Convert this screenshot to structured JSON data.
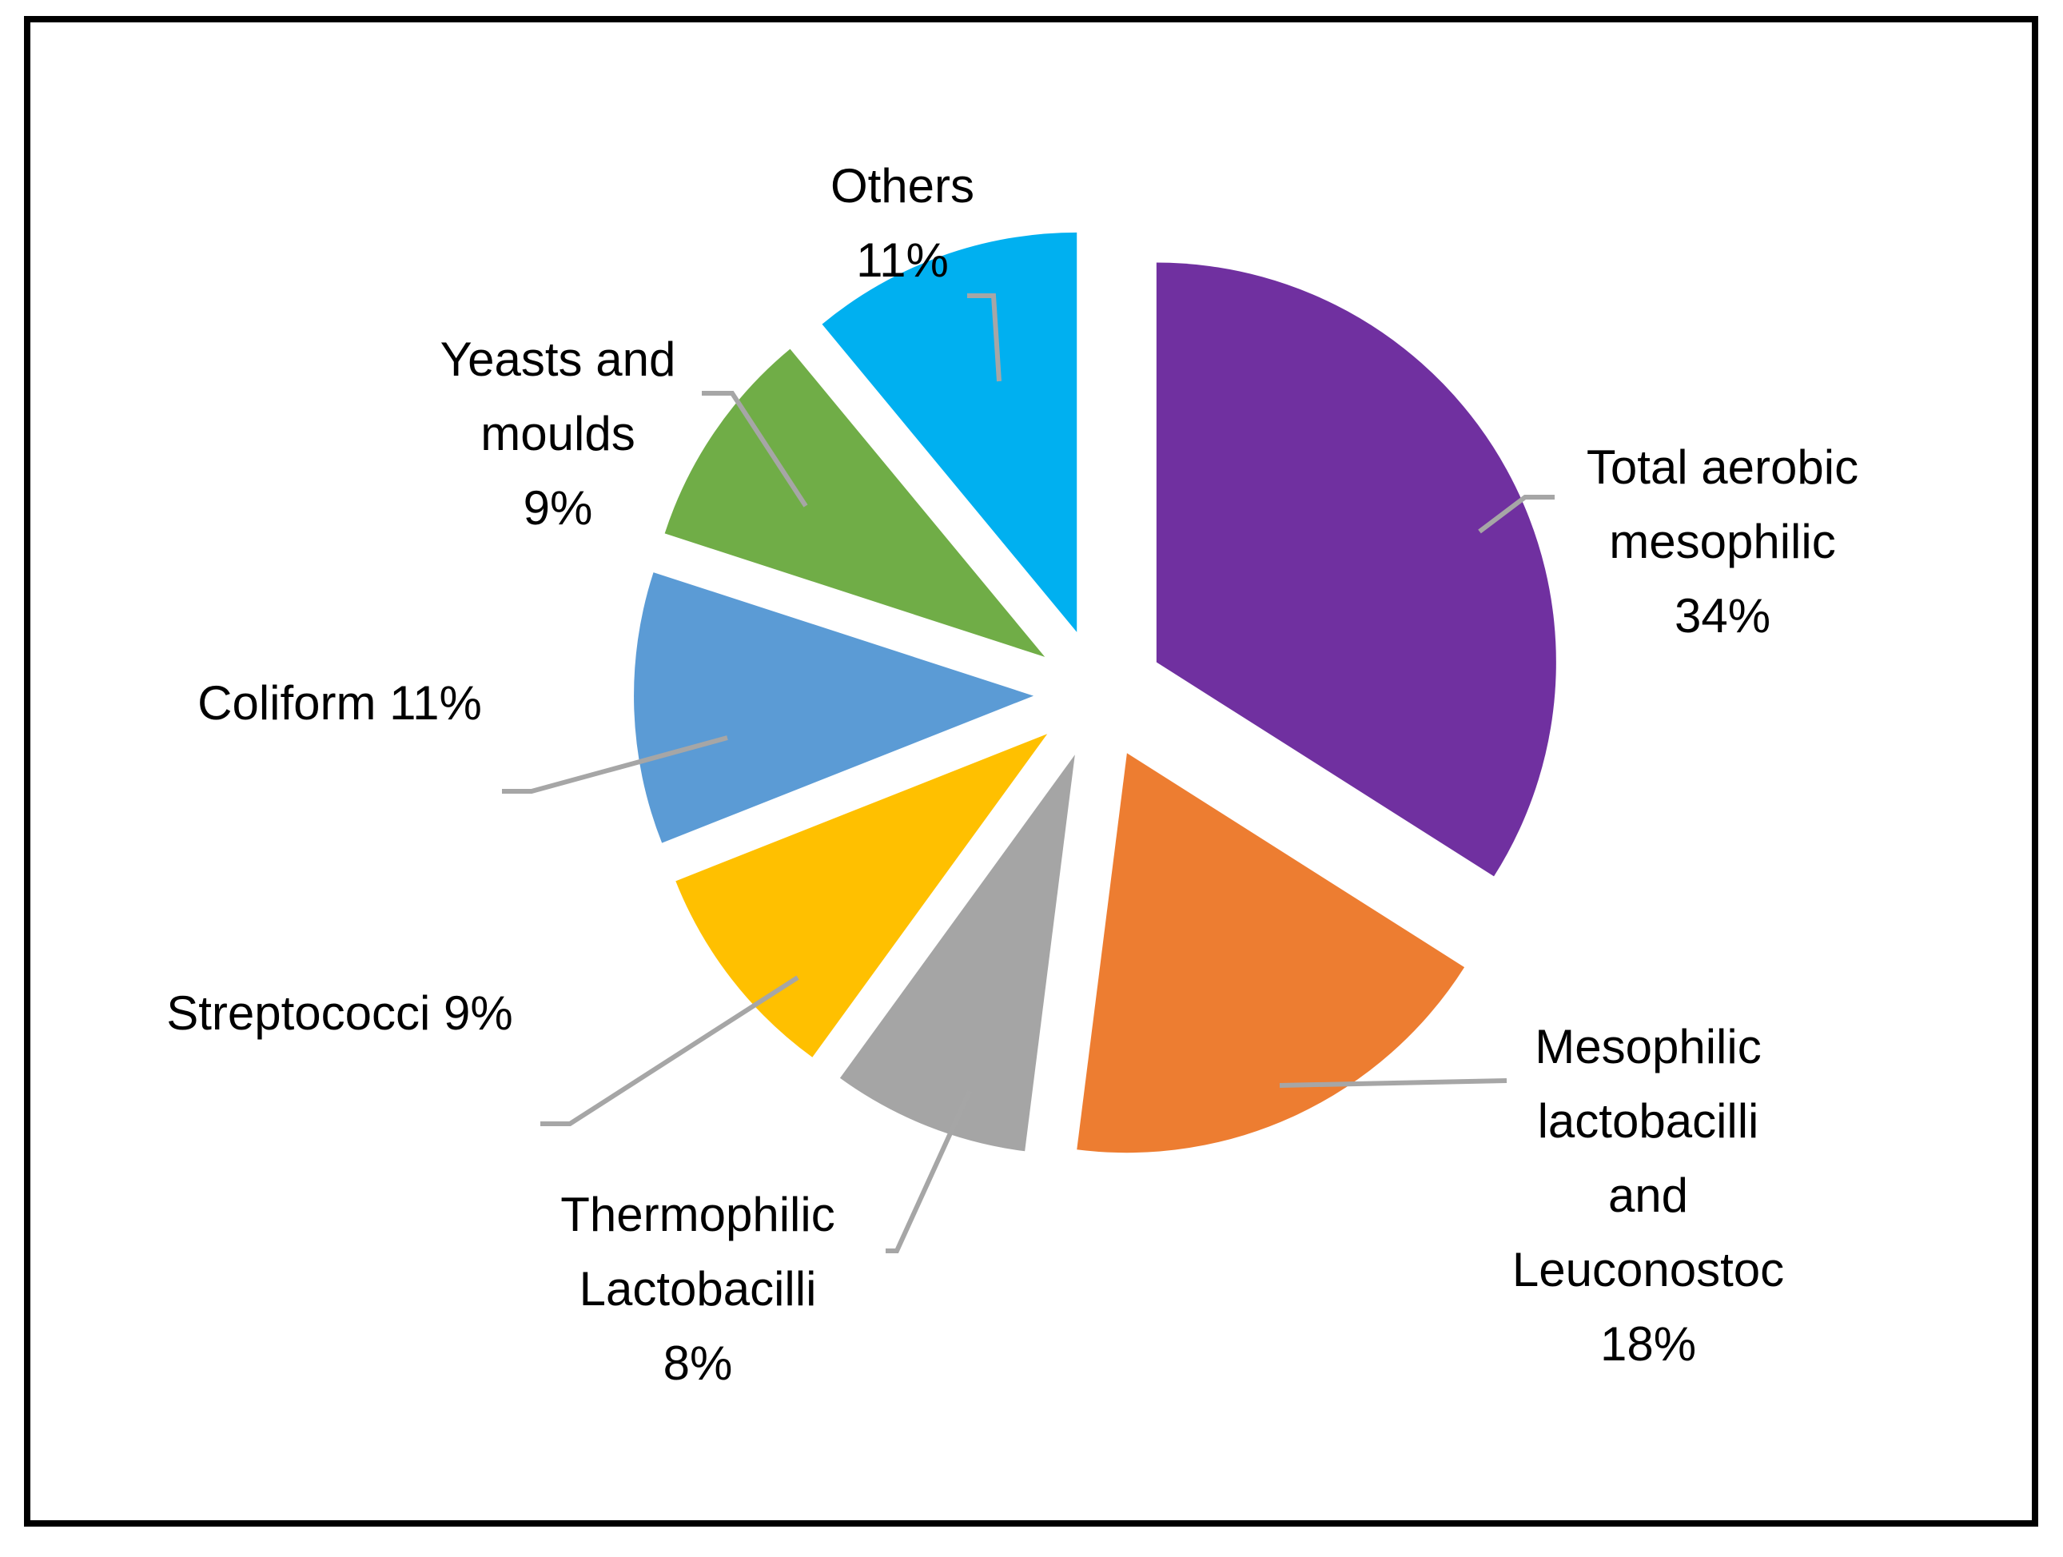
{
  "chart_data": {
    "type": "pie",
    "title": "",
    "exploded": true,
    "slices": [
      {
        "name": "Total aerobic mesophilic",
        "label_lines": [
          "Total aerobic",
          "mesophilic",
          "34%"
        ],
        "value": 34,
        "percent_label": "34%",
        "color": "#7030A0"
      },
      {
        "name": "Mesophilic lactobacilli and Leuconostoc",
        "label_lines": [
          "Mesophilic",
          "lactobacilli",
          "and",
          "Leuconostoc",
          "18%"
        ],
        "value": 18,
        "percent_label": "18%",
        "color": "#ED7D31"
      },
      {
        "name": "Thermophilic Lactobacilli",
        "label_lines": [
          "Thermophilic",
          "Lactobacilli",
          "8%"
        ],
        "value": 8,
        "percent_label": "8%",
        "color": "#A5A5A5"
      },
      {
        "name": "Streptococci",
        "label_lines": [
          "Streptococci 9%"
        ],
        "value": 9,
        "percent_label": "9%",
        "color": "#FFC000"
      },
      {
        "name": "Coliform",
        "label_lines": [
          "Coliform 11%"
        ],
        "value": 11,
        "percent_label": "11%",
        "color": "#5B9BD5"
      },
      {
        "name": "Yeasts and moulds",
        "label_lines": [
          "Yeasts and",
          "moulds",
          "9%"
        ],
        "value": 9,
        "percent_label": "9%",
        "color": "#70AD47"
      },
      {
        "name": "Others",
        "label_lines": [
          "Others",
          "11%"
        ],
        "value": 11,
        "percent_label": "11%",
        "color": "#00B0F0"
      }
    ],
    "leader_line_color": "#A6A6A6"
  }
}
